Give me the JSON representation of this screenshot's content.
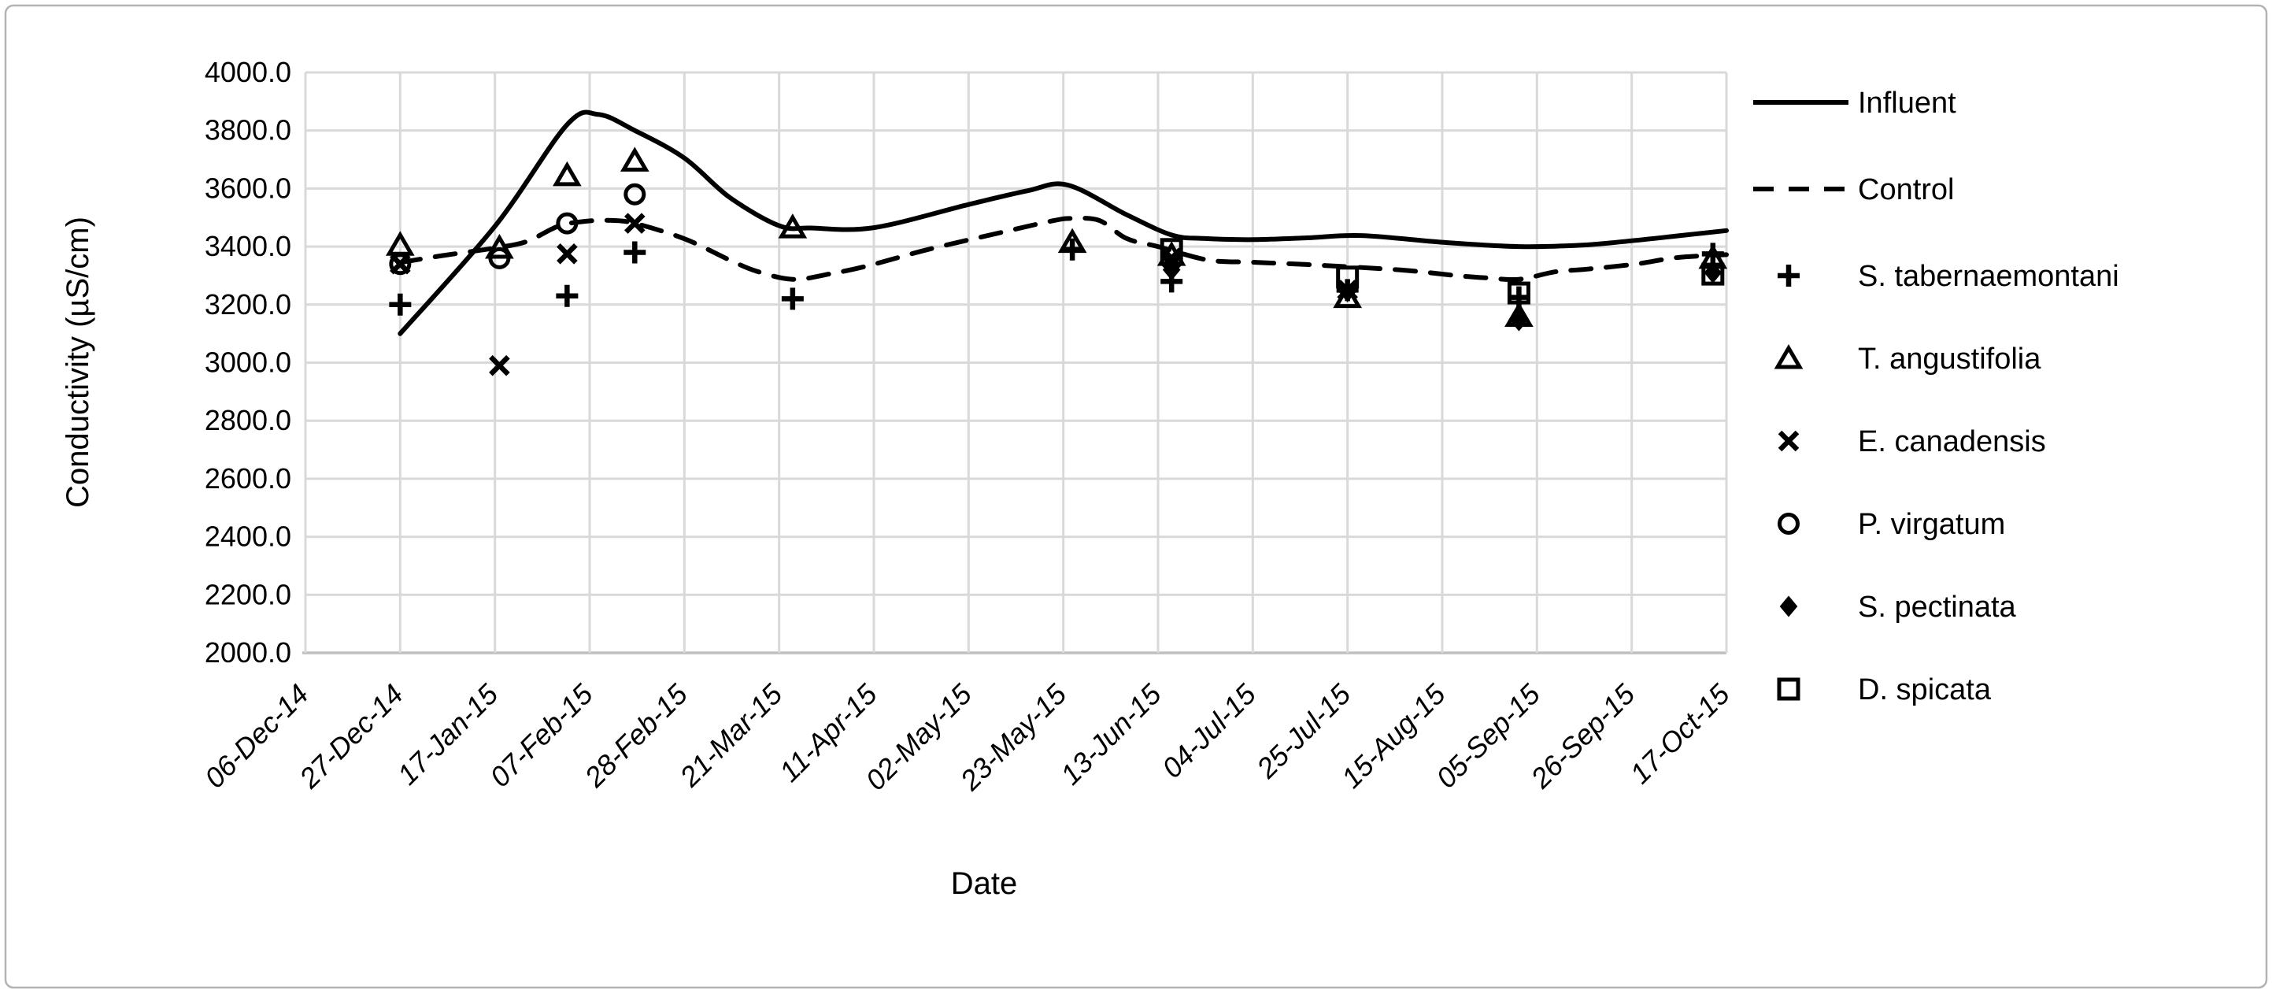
{
  "colors": {
    "ink": "#000000",
    "grid": "#d9d9d9",
    "axis_line": "#bfbfbf",
    "frame": "#b3b3b3",
    "background": "#ffffff"
  },
  "chart_data": {
    "type": "line+scatter",
    "title": "",
    "xlabel": "Date",
    "ylabel": "Conductivity  (µS/cm)",
    "grid": true,
    "legend_position": "right",
    "y_axis": {
      "min": 2000,
      "max": 4000,
      "step": 200,
      "tick_labels": [
        "4000.0",
        "3800.0",
        "3600.0",
        "3400.0",
        "3200.0",
        "3000.0",
        "2800.0",
        "2600.0",
        "2400.0",
        "2200.0",
        "2000.0"
      ]
    },
    "x_axis": {
      "tick_labels": [
        "06-Dec-14",
        "27-Dec-14",
        "17-Jan-15",
        "07-Feb-15",
        "28-Feb-15",
        "21-Mar-15",
        "11-Apr-15",
        "02-May-15",
        "23-May-15",
        "13-Jun-15",
        "04-Jul-15",
        "25-Jul-15",
        "15-Aug-15",
        "05-Sep-15",
        "26-Sep-15",
        "17-Oct-15"
      ],
      "days_per_tick": 21,
      "total_days": 315
    },
    "line_series": [
      {
        "name": "Influent",
        "style": "solid",
        "points": [
          [
            21,
            3100
          ],
          [
            42,
            3470
          ],
          [
            58,
            3820
          ],
          [
            65,
            3855
          ],
          [
            73,
            3800
          ],
          [
            84,
            3705
          ],
          [
            94,
            3570
          ],
          [
            105,
            3472
          ],
          [
            112,
            3464
          ],
          [
            126,
            3465
          ],
          [
            147,
            3545
          ],
          [
            160,
            3592
          ],
          [
            169,
            3612
          ],
          [
            182,
            3510
          ],
          [
            192,
            3440
          ],
          [
            199,
            3428
          ],
          [
            210,
            3424
          ],
          [
            222,
            3430
          ],
          [
            234,
            3438
          ],
          [
            252,
            3415
          ],
          [
            269,
            3400
          ],
          [
            283,
            3405
          ],
          [
            294,
            3420
          ],
          [
            306,
            3440
          ],
          [
            315,
            3455
          ]
        ]
      },
      {
        "name": "Control",
        "style": "dashed",
        "points": [
          [
            21,
            3345
          ],
          [
            30,
            3368
          ],
          [
            42,
            3395
          ],
          [
            49,
            3417
          ],
          [
            56,
            3470
          ],
          [
            62,
            3487
          ],
          [
            68,
            3490
          ],
          [
            73,
            3480
          ],
          [
            84,
            3427
          ],
          [
            94,
            3354
          ],
          [
            100,
            3315
          ],
          [
            108,
            3287
          ],
          [
            116,
            3305
          ],
          [
            125,
            3335
          ],
          [
            138,
            3390
          ],
          [
            156,
            3455
          ],
          [
            166,
            3490
          ],
          [
            170,
            3497
          ],
          [
            176,
            3490
          ],
          [
            182,
            3428
          ],
          [
            189,
            3400
          ],
          [
            200,
            3354
          ],
          [
            210,
            3346
          ],
          [
            222,
            3338
          ],
          [
            243,
            3319
          ],
          [
            255,
            3300
          ],
          [
            262,
            3292
          ],
          [
            269,
            3287
          ],
          [
            277,
            3313
          ],
          [
            284,
            3322
          ],
          [
            295,
            3340
          ],
          [
            304,
            3362
          ],
          [
            315,
            3372
          ]
        ]
      }
    ],
    "scatter_series": [
      {
        "name": "S. tabernaemontani",
        "marker": "plus",
        "points": [
          {
            "date": "27-Dec-14",
            "day": 21,
            "value": 3200
          },
          {
            "date": "02-Feb-15",
            "day": 58,
            "value": 3230
          },
          {
            "date": "17-Feb-15",
            "day": 73,
            "value": 3380
          },
          {
            "date": "24-Mar-15",
            "day": 108,
            "value": 3220
          },
          {
            "date": "25-May-15",
            "day": 170,
            "value": 3390
          },
          {
            "date": "16-Jun-15",
            "day": 192,
            "value": 3280
          },
          {
            "date": "25-Jul-15",
            "day": 231,
            "value": 3250
          },
          {
            "date": "01-Sep-15",
            "day": 269,
            "value": 3225
          },
          {
            "date": "14-Oct-15",
            "day": 312,
            "value": 3375
          }
        ]
      },
      {
        "name": "T. angustifolia",
        "marker": "triangle",
        "points": [
          {
            "date": "27-Dec-14",
            "day": 21,
            "value": 3405
          },
          {
            "date": "18-Jan-15",
            "day": 43,
            "value": 3395
          },
          {
            "date": "02-Feb-15",
            "day": 58,
            "value": 3645
          },
          {
            "date": "17-Feb-15",
            "day": 73,
            "value": 3695
          },
          {
            "date": "24-Mar-15",
            "day": 108,
            "value": 3465
          },
          {
            "date": "25-May-15",
            "day": 170,
            "value": 3415
          },
          {
            "date": "16-Jun-15",
            "day": 192,
            "value": 3370
          },
          {
            "date": "25-Jul-15",
            "day": 231,
            "value": 3225
          },
          {
            "date": "01-Sep-15",
            "day": 269,
            "value": 3160
          },
          {
            "date": "14-Oct-15",
            "day": 312,
            "value": 3360
          }
        ]
      },
      {
        "name": "E. canadensis",
        "marker": "x",
        "points": [
          {
            "date": "27-Dec-14",
            "day": 21,
            "value": 3340
          },
          {
            "date": "18-Jan-15",
            "day": 43,
            "value": 2990
          },
          {
            "date": "02-Feb-15",
            "day": 58,
            "value": 3375
          },
          {
            "date": "17-Feb-15",
            "day": 73,
            "value": 3480
          },
          {
            "date": "16-Jun-15",
            "day": 192,
            "value": 3360
          },
          {
            "date": "25-Jul-15",
            "day": 231,
            "value": 3250
          }
        ]
      },
      {
        "name": "P. virgatum",
        "marker": "circle",
        "points": [
          {
            "date": "27-Dec-14",
            "day": 21,
            "value": 3340
          },
          {
            "date": "18-Jan-15",
            "day": 43,
            "value": 3360
          },
          {
            "date": "02-Feb-15",
            "day": 58,
            "value": 3480
          },
          {
            "date": "17-Feb-15",
            "day": 73,
            "value": 3580
          }
        ]
      },
      {
        "name": "S. pectinata",
        "marker": "diamond",
        "points": [
          {
            "date": "16-Jun-15",
            "day": 192,
            "value": 3320
          },
          {
            "date": "25-Jul-15",
            "day": 231,
            "value": 3245
          },
          {
            "date": "01-Sep-15",
            "day": 269,
            "value": 3145
          },
          {
            "date": "14-Oct-15",
            "day": 312,
            "value": 3310
          }
        ]
      },
      {
        "name": "D. spicata",
        "marker": "square",
        "points": [
          {
            "date": "16-Jun-15",
            "day": 192,
            "value": 3390
          },
          {
            "date": "25-Jul-15",
            "day": 231,
            "value": 3295
          },
          {
            "date": "01-Sep-15",
            "day": 269,
            "value": 3240
          },
          {
            "date": "14-Oct-15",
            "day": 312,
            "value": 3305
          }
        ]
      }
    ],
    "legend": [
      {
        "label": "Influent",
        "sample": "solid-line"
      },
      {
        "label": "Control",
        "sample": "dashed-line"
      },
      {
        "label": "S. tabernaemontani",
        "sample": "plus"
      },
      {
        "label": "T. angustifolia",
        "sample": "triangle"
      },
      {
        "label": "E. canadensis",
        "sample": "x"
      },
      {
        "label": "P. virgatum",
        "sample": "circle"
      },
      {
        "label": "S. pectinata",
        "sample": "diamond"
      },
      {
        "label": "D. spicata",
        "sample": "square"
      }
    ]
  }
}
